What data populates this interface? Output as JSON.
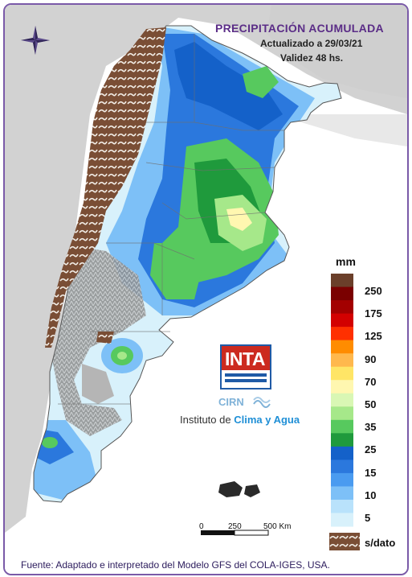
{
  "header": {
    "title": "PRECIPITACIÓN ACUMULADA",
    "updated": "Actualizado a 29/03/21",
    "validity": "Validez 48 hs."
  },
  "legend": {
    "unit": "mm",
    "labels": [
      "250",
      "175",
      "125",
      "90",
      "70",
      "50",
      "35",
      "25",
      "15",
      "10",
      "5"
    ],
    "colors": [
      "#6b3f2a",
      "#7a0000",
      "#a30000",
      "#d30000",
      "#ff3000",
      "#ff8c00",
      "#ffb84d",
      "#ffe566",
      "#fff7b0",
      "#d9f7b4",
      "#a6e88a",
      "#57c95e",
      "#1f9a3c",
      "#1461c9",
      "#2b78dd",
      "#4a9bf0",
      "#7dc0f7",
      "#b9e2fb",
      "#d8f1fb"
    ],
    "no_data_label": "s/dato"
  },
  "logo": {
    "name": "INTA",
    "sub": "CIRN",
    "institute_prefix": "Instituto de ",
    "institute_highlight": "Clima y Agua"
  },
  "scale": {
    "ticks": [
      "0",
      "250",
      "500 Km"
    ]
  },
  "footer": {
    "source": "Fuente: Adaptado e interpretado del Modelo GFS del COLA-IGES, USA."
  },
  "icons": {
    "compass": "compass-rose-icon",
    "no_data": "no-data-hatch-icon"
  }
}
